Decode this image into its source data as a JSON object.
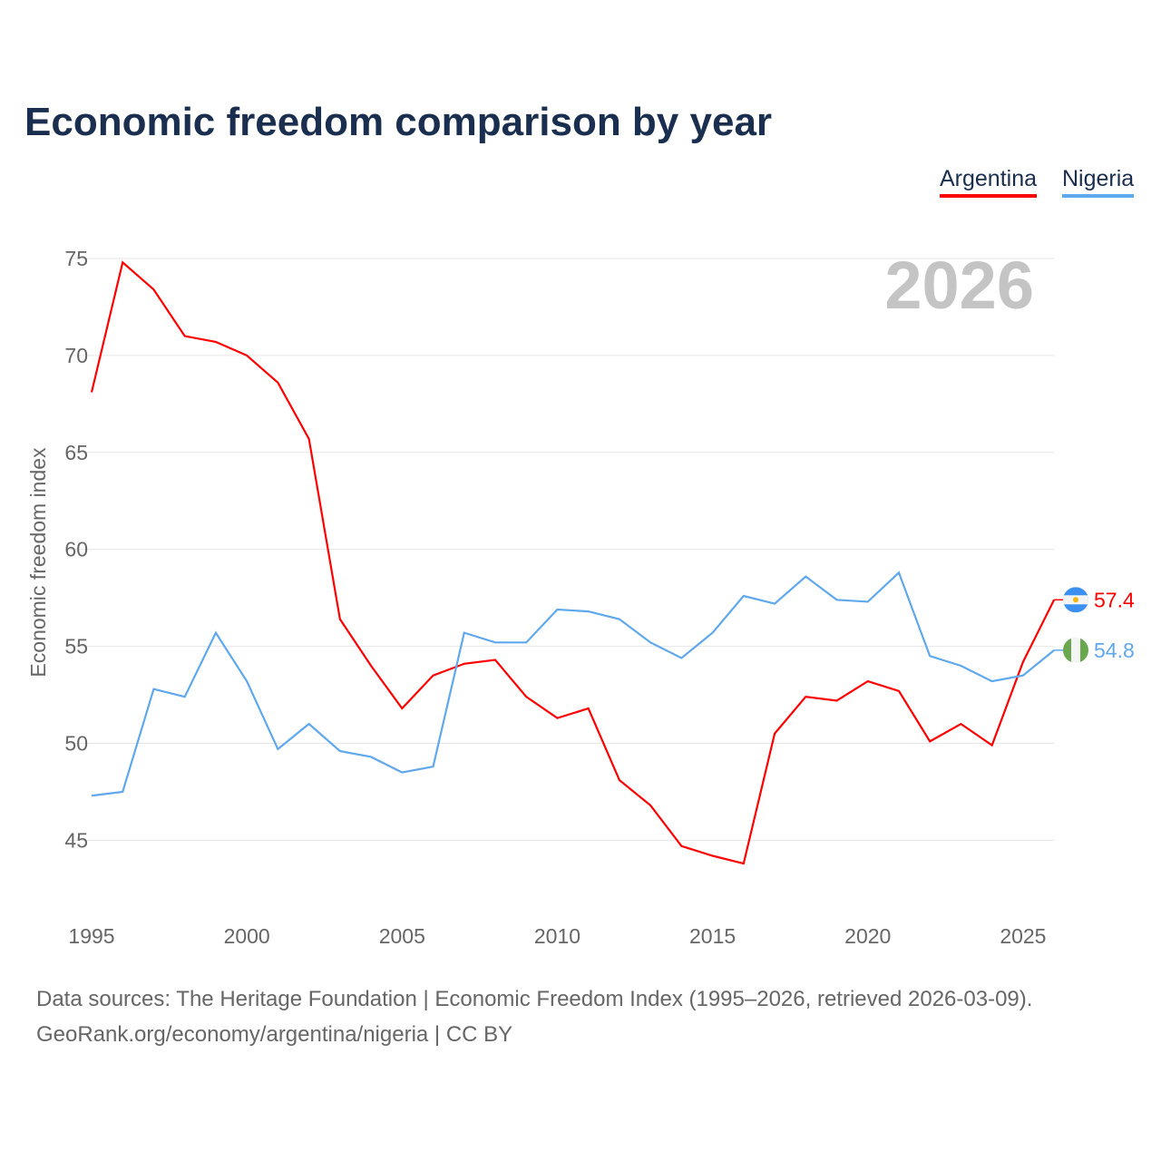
{
  "title": "Economic freedom comparison by year",
  "footer": {
    "line1": "Data sources: The Heritage Foundation | Economic Freedom Index (1995–2026, retrieved 2026-03-09).",
    "line2": "GeoRank.org/economy/argentina/nigeria | CC BY"
  },
  "chart_data": {
    "type": "line",
    "title": "Economic freedom comparison by year",
    "xlabel": "",
    "ylabel": "Economic freedom index",
    "watermark_year": "2026",
    "x": [
      1995,
      1996,
      1997,
      1998,
      1999,
      2000,
      2001,
      2002,
      2003,
      2004,
      2005,
      2006,
      2007,
      2008,
      2009,
      2010,
      2011,
      2012,
      2013,
      2014,
      2015,
      2016,
      2017,
      2018,
      2019,
      2020,
      2021,
      2022,
      2023,
      2024,
      2025,
      2026
    ],
    "xticks": [
      "1995",
      "2000",
      "2005",
      "2010",
      "2015",
      "2020",
      "2025"
    ],
    "yticks": [
      "45",
      "50",
      "55",
      "60",
      "65",
      "70",
      "75"
    ],
    "ylim": [
      42,
      76
    ],
    "grid": true,
    "legend_position": "top-right",
    "series": [
      {
        "name": "Argentina",
        "color": "#ff0000",
        "end_label": "57.4",
        "values": [
          68.1,
          74.8,
          73.4,
          71.0,
          70.7,
          70.0,
          68.6,
          65.7,
          56.4,
          54.0,
          51.8,
          53.5,
          54.1,
          54.3,
          52.4,
          51.3,
          51.8,
          48.1,
          46.8,
          44.7,
          44.2,
          43.8,
          50.5,
          52.4,
          52.2,
          53.2,
          52.7,
          50.1,
          51.0,
          49.9,
          54.2,
          57.4
        ]
      },
      {
        "name": "Nigeria",
        "color": "#5fa8ee",
        "end_label": "54.8",
        "values": [
          47.3,
          47.5,
          52.8,
          52.4,
          55.7,
          53.2,
          49.7,
          51.0,
          49.6,
          49.3,
          48.5,
          48.8,
          55.7,
          55.2,
          55.2,
          56.9,
          56.8,
          56.4,
          55.2,
          54.4,
          55.7,
          57.6,
          57.2,
          58.6,
          57.4,
          57.3,
          58.8,
          54.5,
          54.0,
          53.2,
          53.5,
          54.8
        ]
      }
    ]
  }
}
